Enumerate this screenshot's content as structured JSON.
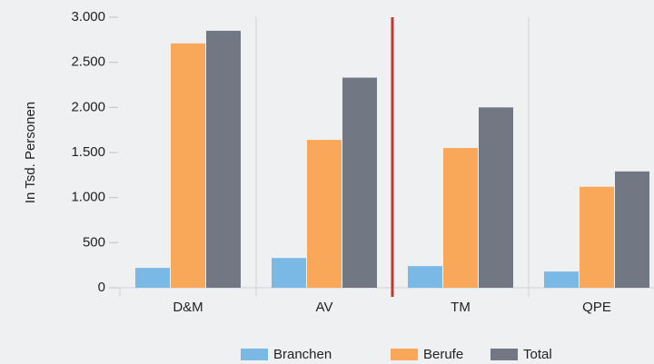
{
  "chart_data": {
    "type": "bar",
    "y_label": "In Tsd. Personen",
    "categories": [
      "D&M",
      "AV",
      "TM",
      "QPE"
    ],
    "series": [
      {
        "name": "Branchen",
        "color": "#7ab8e6",
        "values": [
          220,
          330,
          240,
          180
        ]
      },
      {
        "name": "Berufe",
        "color": "#f9a85a",
        "values": [
          2710,
          1640,
          1550,
          1120
        ]
      },
      {
        "name": "Total",
        "color": "#717883",
        "values": [
          2850,
          2330,
          2000,
          1290
        ]
      }
    ],
    "ylim": [
      0,
      3000
    ],
    "yticks": [
      0,
      500,
      {
        "value": 1000,
        "label": "1.000"
      },
      {
        "value": 1500,
        "label": "1.500"
      },
      {
        "value": 2000,
        "label": "2.000"
      },
      {
        "value": 2500,
        "label": "2.500"
      },
      {
        "value": 3000,
        "label": "3.000"
      }
    ],
    "legend": "bottom"
  }
}
